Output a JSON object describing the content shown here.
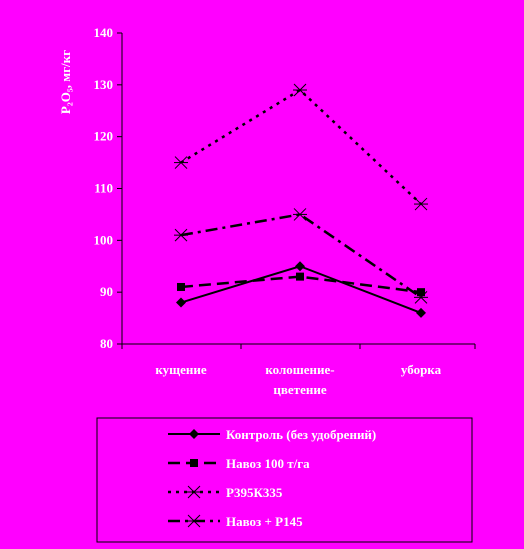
{
  "chart_data": {
    "type": "line",
    "ylabel": "P₂O₅, мг/кг",
    "ylim": [
      80,
      140
    ],
    "yticks": [
      80,
      90,
      100,
      110,
      120,
      130,
      140
    ],
    "categories": [
      [
        "кущение"
      ],
      [
        "колошение-",
        "цветение"
      ],
      [
        "уборка"
      ]
    ],
    "grid": false,
    "legend_position": "bottom",
    "series": [
      {
        "name": "Контроль (без удобрений)",
        "values": [
          88,
          95,
          86
        ],
        "dash": "solid",
        "marker": "diamond"
      },
      {
        "name": "Навоз 100 т/га",
        "values": [
          91,
          93,
          90
        ],
        "dash": "dashed",
        "marker": "square"
      },
      {
        "name": "Р395К335",
        "values": [
          115,
          129,
          107
        ],
        "dash": "dotted",
        "marker": "star"
      },
      {
        "name": "Навоз + Р145",
        "values": [
          101,
          105,
          89
        ],
        "dash": "dashdot",
        "marker": "star"
      }
    ],
    "colors": {
      "background": "#FF00FF",
      "line": "#000000",
      "text": "#FFFFFF",
      "legend_border": "#000000"
    }
  }
}
